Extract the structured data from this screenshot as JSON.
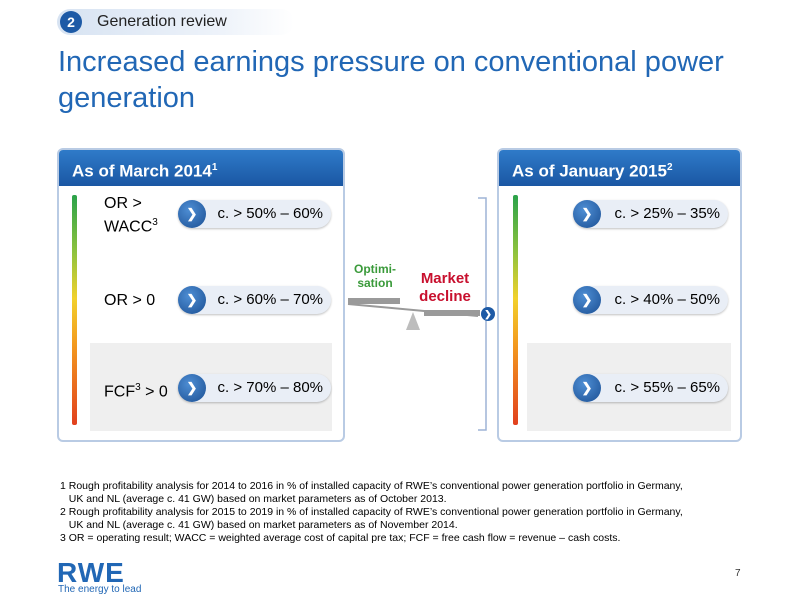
{
  "header": {
    "section_number": "2",
    "section_label": "Generation review"
  },
  "title": "Increased earnings pressure on conventional power generation",
  "left_panel": {
    "heading": "As of March 2014",
    "heading_sup": "1",
    "rows": [
      {
        "label_top": "OR > ",
        "label_bottom": "WACC",
        "label_sup": "3",
        "value": "c. > 50% – 60%"
      },
      {
        "label": "OR > 0",
        "value": "c. > 60% – 70%"
      },
      {
        "label_pre": "FCF",
        "label_sup": "3",
        "label_post": " > 0",
        "value": "c. > 70% – 80%"
      }
    ]
  },
  "right_panel": {
    "heading": "As of January 2015",
    "heading_sup": "2",
    "rows": [
      {
        "value": "c. > 25% – 35%"
      },
      {
        "value": "c. > 40% – 50%"
      },
      {
        "value": "c. > 55% – 65%"
      }
    ]
  },
  "middle": {
    "optimisation": "Optimi-\nsation",
    "market_decline": "Market\ndecline"
  },
  "footnotes": [
    "1 Rough profitability analysis for 2014 to 2016 in % of installed capacity of RWE’s conventional power generation portfolio in Germany,",
    "   UK and NL (average c. 41 GW) based on market parameters as of October 2013.",
    "2 Rough profitability analysis for 2015 to 2019 in % of installed capacity of RWE’s conventional power generation portfolio in Germany,",
    "   UK and NL (average c. 41 GW) based on market parameters as of November 2014.",
    "3 OR = operating result; WACC = weighted average cost of capital pre tax; FCF = free cash flow = revenue – cash costs."
  ],
  "logo": {
    "text": "RWE",
    "tagline": "The energy to lead"
  },
  "page_number": "7",
  "colors": {
    "brand_blue": "#2167b5",
    "green": "#3a9a3a",
    "red": "#c8102e"
  },
  "icons": {
    "pill": "chevron-right-icon",
    "bracket_arrow": "chevron-right-icon"
  }
}
